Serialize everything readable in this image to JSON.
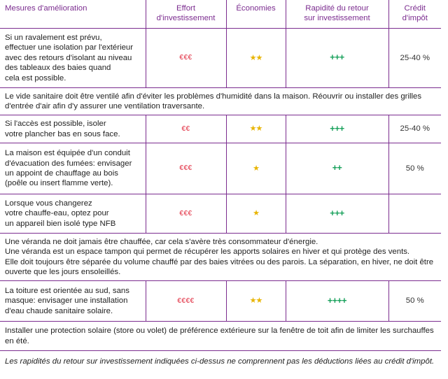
{
  "headers": {
    "measures": "Mesures d'amélioration",
    "effort": [
      "Effort",
      "d'investissement"
    ],
    "savings": "Économies",
    "payback": [
      "Rapidité du retour",
      "sur investissement"
    ],
    "credit": [
      "Crédit",
      "d'impôt"
    ]
  },
  "rows": [
    {
      "lines": [
        "Si un ravalement est prévu,",
        "effectuer une isolation par l'extérieur",
        "avec des retours d'isolant au niveau",
        "des tableaux des baies quand",
        "cela est possible."
      ],
      "effort": "€€€",
      "savings": "★★",
      "payback": "+++",
      "credit": "25-40 %"
    },
    {
      "full_lines": [
        "Le vide sanitaire doit être ventilé afin d'éviter les problèmes d'humidité dans la maison. Réouvrir ou installer des grilles",
        "d'entrée d'air afin d'y assurer une ventilation traversante."
      ]
    },
    {
      "lines": [
        "Si l'accès est possible, isoler",
        "votre plancher bas en sous face."
      ],
      "effort": "€€",
      "savings": "★★",
      "payback": "+++",
      "credit": "25-40 %"
    },
    {
      "lines": [
        "La maison est équipée d'un conduit",
        "d'évacuation des fumées: envisager",
        "un appoint de chauffage au bois",
        "(poêle ou insert flamme verte)."
      ],
      "effort": "€€€",
      "savings": "★",
      "payback": "++",
      "credit": "50 %"
    },
    {
      "lines": [
        "Lorsque vous changerez",
        "votre chauffe-eau, optez pour",
        "un appareil bien isolé type NFB"
      ],
      "effort": "€€€",
      "savings": "★",
      "payback": "+++",
      "credit": ""
    },
    {
      "full_lines": [
        "Une véranda ne doit jamais être chauffée, car cela s'avère très consommateur d'énergie.",
        "Une véranda est un espace tampon qui permet de récupérer les apports solaires en hiver et qui protège des vents.",
        "Elle doit toujours être séparée du volume chauffé par des baies vitrées ou des parois. La séparation, en hiver, ne doit être",
        "ouverte que les jours ensoleillés."
      ]
    },
    {
      "lines": [
        "La toiture est orientée au sud, sans",
        "masque: envisager une installation",
        "d'eau chaude sanitaire solaire."
      ],
      "effort": "€€€€",
      "savings": "★★",
      "payback": "++++",
      "credit": "50 %"
    },
    {
      "full_lines": [
        "Installer une protection solaire (store ou volet) de préférence extérieure sur la fenêtre de toit afin de limiter les surchauffes",
        "en été."
      ]
    }
  ],
  "footnote": "Les rapidités du retour sur investissement indiquées ci-dessus ne comprennent pas les déductions liées au crédit d'impôt."
}
